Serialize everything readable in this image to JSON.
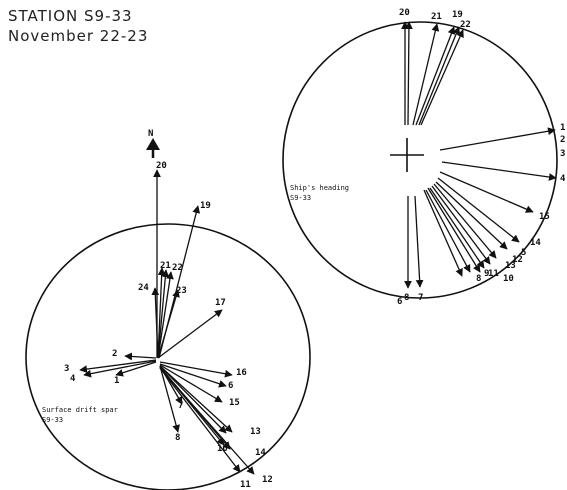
{
  "header": {
    "station": "STATION S9-33",
    "dates": "November 22-23"
  },
  "heading_diagram": {
    "caption_line1": "Ship's heading",
    "caption_line2": "S9-33",
    "labels": [
      "20",
      "21",
      "19",
      "22",
      "1",
      "2",
      "3",
      "4",
      "15",
      "14",
      "5",
      "12",
      "13",
      "9",
      "8",
      "11",
      "10",
      "6",
      "8",
      "7"
    ]
  },
  "drift_diagram": {
    "north_label": "N",
    "caption_line1": "Surface drift spar",
    "caption_line2": "S9-33",
    "labels": [
      "20",
      "19",
      "21",
      "22",
      "24",
      "23",
      "17",
      "2",
      "3",
      "4",
      "1",
      "16",
      "6",
      "15",
      "7",
      "13",
      "10",
      "14",
      "12",
      "11",
      "8"
    ]
  }
}
